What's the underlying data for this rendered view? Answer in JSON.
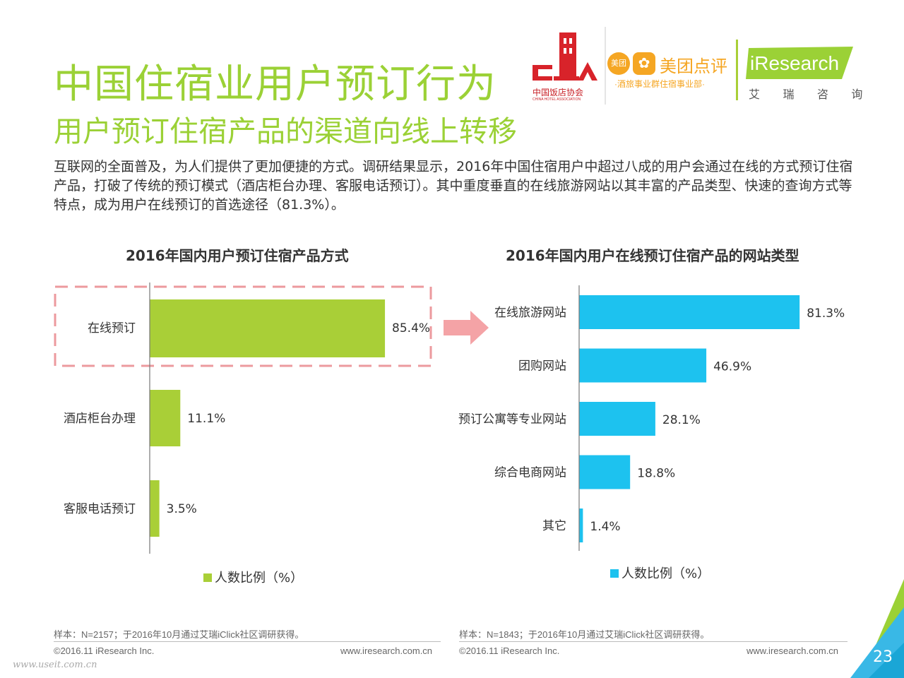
{
  "header": {
    "title": "中国住宿业用户预订行为",
    "subtitle": "用户预订住宿产品的渠道向线上转移",
    "description": "互联网的全面普及，为人们提供了更加便捷的方式。调研结果显示，2016年中国住宿用户中超过八成的用户会通过在线的方式预订住宿产品，打破了传统的预订模式（酒店柜台办理、客服电话预订）。其中重度垂直的在线旅游网站以其丰富的产品类型、快速的查询方式等特点，成为用户在线预订的首选途径（81.3%）。"
  },
  "logos": {
    "cha_name": "中国饭店协会",
    "cha_en": "CHINA HOTEL ASSOCIATION",
    "meituan_badge": "美团",
    "meituan_name": "美团点评",
    "meituan_dept": "·酒旅事业群住宿事业部·",
    "iresearch_name": "iResearch",
    "iresearch_cn": "艾 瑞 咨 询"
  },
  "chart_data": [
    {
      "type": "bar",
      "orientation": "horizontal",
      "title": "2016年国内用户预订住宿产品方式",
      "categories": [
        "在线预订",
        "酒店柜台办理",
        "客服电话预订"
      ],
      "values": [
        85.4,
        11.1,
        3.5
      ],
      "value_labels": [
        "85.4%",
        "11.1%",
        "3.5%"
      ],
      "legend": "人数比例（%）",
      "color": "#a9cf37",
      "highlight": "在线预订"
    },
    {
      "type": "bar",
      "orientation": "horizontal",
      "title": "2016年国内用户在线预订住宿产品的网站类型",
      "categories": [
        "在线旅游网站",
        "团购网站",
        "预订公寓等专业网站",
        "综合电商网站",
        "其它"
      ],
      "values": [
        81.3,
        46.9,
        28.1,
        18.8,
        1.4
      ],
      "value_labels": [
        "81.3%",
        "46.9%",
        "28.1%",
        "18.8%",
        "1.4%"
      ],
      "legend": "人数比例（%）",
      "color": "#1dc2ef"
    }
  ],
  "footer": {
    "left_sample": "样本：N=2157；于2016年10月通过艾瑞iClick社区调研获得。",
    "right_sample": "样本：N=1843；于2016年10月通过艾瑞iClick社区调研获得。",
    "copyright": "©2016.11 iResearch Inc.",
    "website": "www.iresearch.com.cn",
    "watermark": "www.useit.com.cn",
    "page_number": "23"
  },
  "colors": {
    "accent_green": "#9bd136",
    "bar_green": "#a9cf37",
    "bar_blue": "#1dc2ef",
    "highlight_dash": "#ec9a9e",
    "arrow": "#f4a3a6"
  }
}
